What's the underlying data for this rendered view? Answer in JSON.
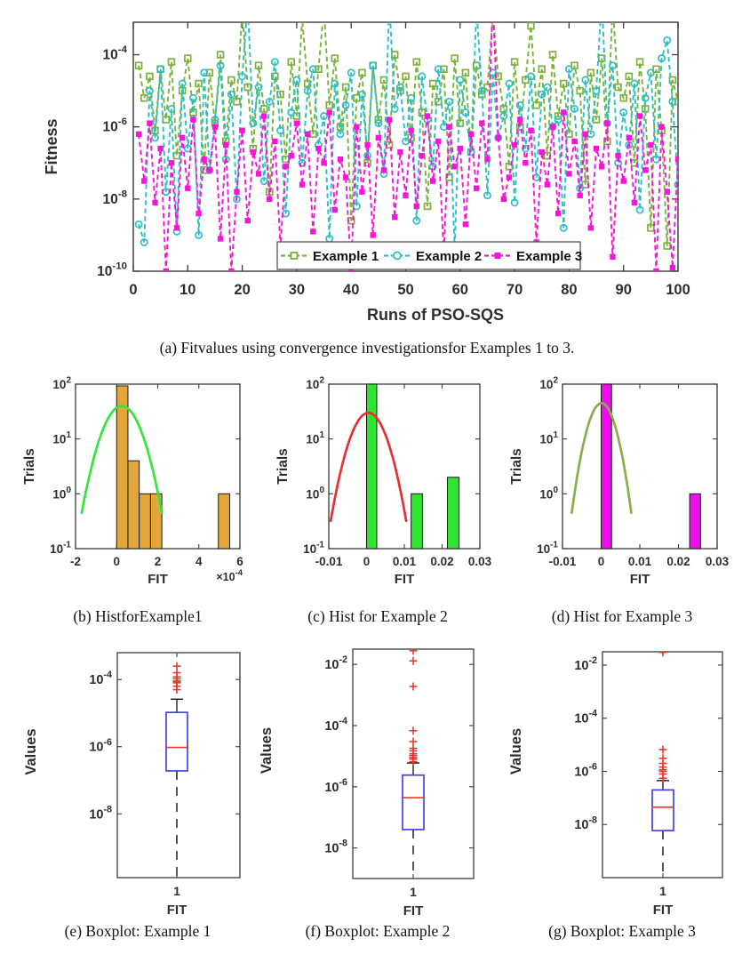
{
  "captions": {
    "a": "(a) Fitvalues using convergence investigationsfor Examples 1 to 3.",
    "b": "(b) HistforExample1",
    "c": "(c) Hist for Example 2",
    "d": "(d) Hist for Example 3",
    "e": "(e) Boxplot: Example 1",
    "f": "(f) Boxplot: Example 2",
    "g": "(g) Boxplot: Example 3"
  },
  "chart_data": [
    {
      "id": "fitness-convergence",
      "type": "line",
      "title": "",
      "xlabel": "Runs of PSO-SQS",
      "ylabel": "Fitness",
      "x_ticks": [
        0,
        10,
        20,
        30,
        40,
        50,
        60,
        70,
        80,
        90,
        100
      ],
      "y_tick_exponents": [
        -4,
        -6,
        -8,
        -10
      ],
      "xlim": [
        0,
        100
      ],
      "ylim_log10": [
        -10,
        -3.1
      ],
      "y_scale": "log",
      "grid": false,
      "legend_position": "inside-bottom-center",
      "legend_border_color": "#555555",
      "series": [
        {
          "name": "Example 1",
          "color": "#7CB13A",
          "marker": "open-square",
          "line_style": "dashed",
          "log10_values": [
            -4.3,
            -5.2,
            -4.6,
            -6.1,
            -4.4,
            -5.8,
            -4.2,
            -6.8,
            -5.0,
            -4.1,
            -5.6,
            -4.8,
            -7.2,
            -4.5,
            -5.9,
            -4.0,
            -6.4,
            -4.7,
            -5.3,
            -2.8,
            -4.9,
            -6.6,
            -4.3,
            -5.5,
            -7.8,
            -4.6,
            -5.1,
            -6.9,
            -4.2,
            -5.7,
            -3.0,
            -4.8,
            -6.2,
            -4.4,
            -2.7,
            -5.4,
            -4.1,
            -6.0,
            -4.9,
            -8.6,
            -5.2,
            -4.5,
            -7.0,
            -4.3,
            -5.8,
            -4.7,
            -6.5,
            -4.0,
            -5.0,
            -4.6,
            -6.3,
            -4.2,
            -5.6,
            -8.2,
            -4.8,
            -5.3,
            -4.4,
            -7.4,
            -4.1,
            -5.9,
            -4.5,
            -6.7,
            -4.3,
            -5.1,
            -4.9,
            -2.9,
            -4.6,
            -5.5,
            -7.1,
            -4.2,
            -6.0,
            -4.7,
            -3.2,
            -5.4,
            -4.4,
            -6.8,
            -4.0,
            -5.7,
            -4.8,
            -6.2,
            -4.3,
            -5.0,
            -7.6,
            -4.5,
            -5.8,
            -4.1,
            -6.4,
            -2.6,
            -4.9,
            -5.2,
            -4.6,
            -7.0,
            -4.2,
            -5.5,
            -8.8,
            -4.4,
            -6.1,
            -9.3,
            -4.7,
            -5.3
          ]
        },
        {
          "name": "Example 2",
          "color": "#2BBFC6",
          "marker": "open-circle",
          "line_style": "dashed",
          "log10_values": [
            -8.7,
            -9.2,
            -5.0,
            -6.3,
            -4.4,
            -7.8,
            -5.5,
            -8.9,
            -4.8,
            -6.6,
            -5.2,
            -9.0,
            -4.5,
            -7.2,
            -5.8,
            -4.3,
            -6.9,
            -5.1,
            -8.0,
            -4.6,
            -2.6,
            -5.9,
            -4.9,
            -7.5,
            -5.3,
            -4.2,
            -6.1,
            -8.4,
            -5.6,
            -4.7,
            -7.0,
            -5.0,
            -4.4,
            -6.5,
            -5.7,
            -9.1,
            -4.8,
            -6.2,
            -5.4,
            -4.5,
            -8.2,
            -5.1,
            -6.8,
            -4.3,
            -5.9,
            -7.3,
            -2.5,
            -5.5,
            -4.9,
            -6.4,
            -5.2,
            -8.6,
            -4.6,
            -5.8,
            -7.1,
            -4.4,
            -6.0,
            -5.3,
            -9.4,
            -4.7,
            -5.6,
            -6.7,
            -2.7,
            -5.0,
            -7.9,
            -4.5,
            -6.3,
            -5.7,
            -4.8,
            -8.1,
            -5.4,
            -6.6,
            -4.6,
            -7.4,
            -5.1,
            -4.9,
            -6.0,
            -5.8,
            -8.8,
            -4.4,
            -5.5,
            -7.7,
            -4.7,
            -6.2,
            -5.0,
            -2.4,
            -5.9,
            -4.3,
            -7.0,
            -5.6,
            -6.5,
            -4.8,
            -8.3,
            -5.2,
            -4.5,
            -6.9,
            -4.1,
            -3.6,
            -5.3,
            -7.6
          ]
        },
        {
          "name": "Example 3",
          "color": "#F516D8",
          "marker": "filled-square",
          "line_style": "dashed",
          "log10_values": [
            -6.2,
            -7.5,
            -5.9,
            -8.1,
            -6.6,
            -10.0,
            -7.0,
            -8.8,
            -6.3,
            -7.7,
            -5.8,
            -8.4,
            -6.9,
            -7.2,
            -6.0,
            -9.1,
            -6.5,
            -10.0,
            -7.8,
            -6.1,
            -8.6,
            -6.7,
            -7.3,
            -5.7,
            -8.0,
            -6.4,
            -9.3,
            -7.1,
            -6.8,
            -5.9,
            -7.6,
            -6.2,
            -8.9,
            -6.6,
            -7.0,
            -5.6,
            -8.3,
            -6.9,
            -7.4,
            -10.0,
            -6.0,
            -7.8,
            -6.5,
            -9.0,
            -6.3,
            -7.2,
            -5.8,
            -8.5,
            -6.7,
            -7.9,
            -6.1,
            -8.2,
            -6.8,
            -5.7,
            -7.5,
            -6.4,
            -9.5,
            -6.0,
            -7.1,
            -6.6,
            -8.7,
            -6.2,
            -7.7,
            -5.9,
            -6.9,
            -2.5,
            -6.3,
            -8.0,
            -7.4,
            -6.5,
            -5.8,
            -7.0,
            -6.1,
            -9.2,
            -6.7,
            -7.6,
            -6.0,
            -8.4,
            -5.6,
            -7.3,
            -6.4,
            -7.9,
            -6.2,
            -8.8,
            -6.6,
            -7.1,
            -5.9,
            -9.6,
            -6.8,
            -7.5,
            -6.3,
            -8.1,
            -5.7,
            -7.2,
            -6.5,
            -10.0,
            -6.0,
            -7.8,
            -9.9,
            -6.9
          ]
        }
      ]
    },
    {
      "id": "hist-example-1",
      "type": "histogram",
      "xlabel": "FIT",
      "ylabel": "Trials",
      "x_multiplier_prefix": "×10",
      "x_multiplier_exponent": "-4",
      "xlim": [
        -0.0002,
        0.0006
      ],
      "x_tick_values": [
        -0.0002,
        0,
        0.0002,
        0.0004,
        0.0006
      ],
      "x_tick_labels": [
        "-2",
        "0",
        "2",
        "4",
        "6"
      ],
      "ylim_log10": [
        -1,
        2
      ],
      "y_tick_exponents": [
        2,
        1,
        0,
        -1
      ],
      "bar_color": "#E2A63B",
      "bar_edge_color": "#1a1a1a",
      "bars": [
        {
          "range": [
            0,
            5.5e-05
          ],
          "count": 93
        },
        {
          "range": [
            5.5e-05,
            0.00011
          ],
          "count": 4
        },
        {
          "range": [
            0.00011,
            0.000165
          ],
          "count": 1
        },
        {
          "range": [
            0.000165,
            0.00022
          ],
          "count": 1
        },
        {
          "range": [
            0.000495,
            0.00055
          ],
          "count": 1
        }
      ],
      "fit_curve": {
        "color": "#35E53A",
        "x_start": -0.00017,
        "x_end": 0.00022,
        "peak_x": 2.5e-05,
        "peak_count": 40,
        "end_count": 0.45
      }
    },
    {
      "id": "hist-example-2",
      "type": "histogram",
      "xlabel": "FIT",
      "ylabel": "Trials",
      "xlim": [
        -0.01,
        0.03
      ],
      "x_tick_values": [
        -0.01,
        0,
        0.01,
        0.02,
        0.03
      ],
      "x_tick_labels": [
        "-0.01",
        "0",
        "0.01",
        "0.02",
        "0.03"
      ],
      "ylim_log10": [
        -1,
        2
      ],
      "y_tick_exponents": [
        2,
        1,
        0,
        -1
      ],
      "bar_color": "#2FE32F",
      "bar_edge_color": "#1a1a1a",
      "bars": [
        {
          "range": [
            0,
            0.0027
          ],
          "count": 100
        },
        {
          "range": [
            0.0118,
            0.0148
          ],
          "count": 1
        },
        {
          "range": [
            0.0214,
            0.0245
          ],
          "count": 2
        }
      ],
      "fit_curve": {
        "color": "#E4312F",
        "x_start": -0.0095,
        "x_end": 0.0105,
        "peak_x": 0.0005,
        "peak_count": 30,
        "end_count": 0.32
      }
    },
    {
      "id": "hist-example-3",
      "type": "histogram",
      "xlabel": "FIT",
      "ylabel": "Trials",
      "xlim": [
        -0.01,
        0.03
      ],
      "x_tick_values": [
        -0.01,
        0,
        0.01,
        0.02,
        0.03
      ],
      "x_tick_labels": [
        "-0.01",
        "0",
        "0.01",
        "0.02",
        "0.03"
      ],
      "ylim_log10": [
        -1,
        2
      ],
      "y_tick_exponents": [
        2,
        1,
        0,
        -1
      ],
      "bar_color": "#EB0FEB",
      "bar_edge_color": "#1a1a1a",
      "bars": [
        {
          "range": [
            0,
            0.0027
          ],
          "count": 100
        },
        {
          "range": [
            0.0229,
            0.0257
          ],
          "count": 1
        }
      ],
      "fit_curve": {
        "color": "#8BAD4B",
        "x_start": -0.0076,
        "x_end": 0.0078,
        "peak_x": 0.0001,
        "peak_count": 45,
        "end_count": 0.45
      }
    },
    {
      "id": "box-example-1",
      "type": "boxplot",
      "xlabel": "FIT",
      "ylabel": "Values",
      "x_tick_label": "1",
      "y_tick_exponents": [
        -4,
        -6,
        -8
      ],
      "ylim_log10": [
        -9.9,
        -3.2
      ],
      "whisker_high": 2.6e-05,
      "q3": 1.05e-05,
      "median": 9.5e-07,
      "q1": 1.9e-07,
      "lower_whisker": "dashed-to-axis-bottom",
      "outliers": [
        0.0007,
        0.00025,
        0.00016,
        0.00012,
        0.000105,
        9e-05,
        8.5e-05,
        8e-05,
        6.3e-05,
        5e-05
      ],
      "box_color": "#4444DD",
      "median_color": "#E8392E",
      "outlier_color": "#E8392E"
    },
    {
      "id": "box-example-2",
      "type": "boxplot",
      "xlabel": "FIT",
      "ylabel": "Values",
      "x_tick_label": "1",
      "y_tick_exponents": [
        -2,
        -4,
        -6,
        -8
      ],
      "ylim_log10": [
        -9.0,
        -1.5
      ],
      "whisker_high": 6e-06,
      "q3": 2.4e-06,
      "median": 4.4e-07,
      "q1": 4e-08,
      "lower_whisker": "dashed-to-axis-bottom",
      "outliers": [
        0.028,
        0.013,
        0.0019,
        6.8e-05,
        3e-05,
        1.8e-05,
        1.5e-05,
        1.2e-05,
        1.05e-05,
        9e-06,
        8e-06,
        6.6e-06
      ],
      "box_color": "#4444DD",
      "median_color": "#E8392E",
      "outlier_color": "#E8392E"
    },
    {
      "id": "box-example-3",
      "type": "boxplot",
      "xlabel": "FIT",
      "ylabel": "Values",
      "x_tick_label": "1",
      "y_tick_exponents": [
        -2,
        -4,
        -6,
        -8
      ],
      "ylim_log10": [
        -10,
        -1.5
      ],
      "whisker_high": 4.5e-07,
      "q3": 2e-07,
      "median": 4.5e-08,
      "q1": 5.9e-09,
      "lower_whisker": "dashed-to-axis-bottom",
      "outliers": [
        0.03,
        6.6e-06,
        3.1e-06,
        2e-06,
        1.45e-06,
        1.15e-06,
        1e-06,
        8e-07,
        5.5e-07
      ],
      "box_color": "#4444DD",
      "median_color": "#E8392E",
      "outlier_color": "#E8392E"
    }
  ]
}
